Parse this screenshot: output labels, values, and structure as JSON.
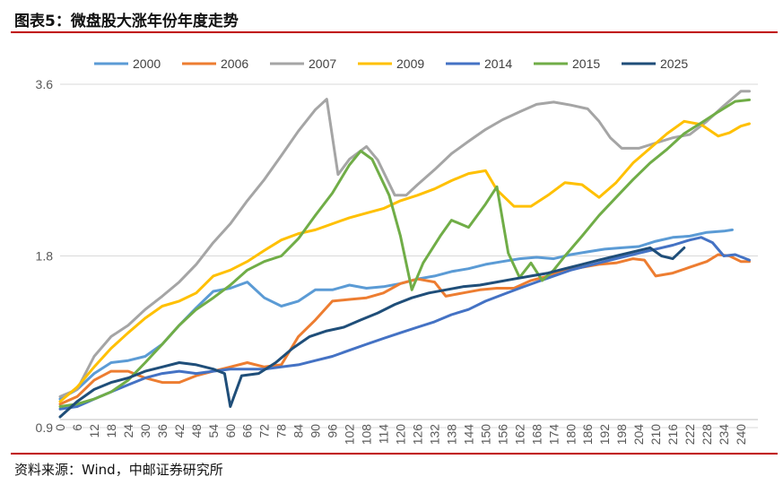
{
  "header": {
    "title": "图表5：微盘股大涨年份年度走势"
  },
  "footer": {
    "source": "资料来源：Wind，中邮证券研究所"
  },
  "chart_data": {
    "type": "line",
    "title": "图表5：微盘股大涨年份年度走势",
    "xlabel": "",
    "ylabel": "",
    "ylim": [
      0.9,
      3.6
    ],
    "yscale": "log",
    "yticks": [
      "0.9",
      "1.8",
      "3.6"
    ],
    "xlim": [
      0,
      246
    ],
    "xticks": [
      0,
      6,
      12,
      18,
      24,
      30,
      36,
      42,
      48,
      54,
      60,
      66,
      72,
      78,
      84,
      90,
      96,
      102,
      108,
      114,
      120,
      126,
      132,
      138,
      144,
      150,
      156,
      162,
      168,
      174,
      180,
      186,
      192,
      198,
      204,
      210,
      216,
      222,
      228,
      234,
      240
    ],
    "legend_position": "top",
    "series": [
      {
        "name": "2000",
        "color": "#5b9bd5",
        "points": [
          [
            0,
            1.01
          ],
          [
            6,
            1.05
          ],
          [
            12,
            1.12
          ],
          [
            18,
            1.17
          ],
          [
            24,
            1.18
          ],
          [
            30,
            1.2
          ],
          [
            36,
            1.26
          ],
          [
            42,
            1.36
          ],
          [
            48,
            1.46
          ],
          [
            54,
            1.56
          ],
          [
            60,
            1.58
          ],
          [
            66,
            1.62
          ],
          [
            72,
            1.52
          ],
          [
            78,
            1.47
          ],
          [
            84,
            1.5
          ],
          [
            90,
            1.57
          ],
          [
            96,
            1.57
          ],
          [
            102,
            1.6
          ],
          [
            108,
            1.58
          ],
          [
            114,
            1.59
          ],
          [
            120,
            1.61
          ],
          [
            126,
            1.64
          ],
          [
            132,
            1.66
          ],
          [
            138,
            1.69
          ],
          [
            144,
            1.71
          ],
          [
            150,
            1.74
          ],
          [
            156,
            1.76
          ],
          [
            162,
            1.78
          ],
          [
            168,
            1.79
          ],
          [
            174,
            1.78
          ],
          [
            180,
            1.81
          ],
          [
            186,
            1.83
          ],
          [
            192,
            1.85
          ],
          [
            198,
            1.86
          ],
          [
            204,
            1.87
          ],
          [
            210,
            1.91
          ],
          [
            216,
            1.94
          ],
          [
            222,
            1.95
          ],
          [
            228,
            1.98
          ],
          [
            234,
            1.99
          ],
          [
            237,
            2.0
          ]
        ]
      },
      {
        "name": "2006",
        "color": "#ed7d31",
        "points": [
          [
            0,
            0.99
          ],
          [
            6,
            1.02
          ],
          [
            12,
            1.09
          ],
          [
            18,
            1.13
          ],
          [
            24,
            1.13
          ],
          [
            30,
            1.1
          ],
          [
            36,
            1.08
          ],
          [
            42,
            1.08
          ],
          [
            48,
            1.11
          ],
          [
            54,
            1.13
          ],
          [
            60,
            1.15
          ],
          [
            66,
            1.17
          ],
          [
            72,
            1.15
          ],
          [
            78,
            1.16
          ],
          [
            84,
            1.3
          ],
          [
            90,
            1.39
          ],
          [
            96,
            1.5
          ],
          [
            102,
            1.51
          ],
          [
            108,
            1.52
          ],
          [
            114,
            1.55
          ],
          [
            120,
            1.61
          ],
          [
            126,
            1.64
          ],
          [
            132,
            1.62
          ],
          [
            136,
            1.53
          ],
          [
            142,
            1.55
          ],
          [
            148,
            1.57
          ],
          [
            154,
            1.58
          ],
          [
            160,
            1.58
          ],
          [
            166,
            1.63
          ],
          [
            172,
            1.66
          ],
          [
            178,
            1.7
          ],
          [
            184,
            1.72
          ],
          [
            190,
            1.74
          ],
          [
            196,
            1.75
          ],
          [
            202,
            1.78
          ],
          [
            206,
            1.77
          ],
          [
            210,
            1.66
          ],
          [
            216,
            1.68
          ],
          [
            222,
            1.72
          ],
          [
            228,
            1.76
          ],
          [
            232,
            1.81
          ],
          [
            236,
            1.8
          ],
          [
            240,
            1.76
          ],
          [
            243,
            1.76
          ]
        ]
      },
      {
        "name": "2007",
        "color": "#a5a5a5",
        "points": [
          [
            0,
            1.02
          ],
          [
            6,
            1.05
          ],
          [
            12,
            1.2
          ],
          [
            18,
            1.3
          ],
          [
            24,
            1.36
          ],
          [
            30,
            1.45
          ],
          [
            36,
            1.53
          ],
          [
            42,
            1.62
          ],
          [
            48,
            1.74
          ],
          [
            54,
            1.9
          ],
          [
            60,
            2.05
          ],
          [
            66,
            2.25
          ],
          [
            72,
            2.45
          ],
          [
            78,
            2.7
          ],
          [
            84,
            2.98
          ],
          [
            90,
            3.25
          ],
          [
            94,
            3.39
          ],
          [
            98,
            2.5
          ],
          [
            102,
            2.66
          ],
          [
            108,
            2.8
          ],
          [
            112,
            2.65
          ],
          [
            118,
            2.3
          ],
          [
            122,
            2.3
          ],
          [
            126,
            2.4
          ],
          [
            132,
            2.55
          ],
          [
            138,
            2.72
          ],
          [
            144,
            2.86
          ],
          [
            150,
            3.0
          ],
          [
            156,
            3.12
          ],
          [
            162,
            3.22
          ],
          [
            168,
            3.32
          ],
          [
            174,
            3.35
          ],
          [
            180,
            3.31
          ],
          [
            186,
            3.26
          ],
          [
            190,
            3.1
          ],
          [
            194,
            2.9
          ],
          [
            198,
            2.78
          ],
          [
            204,
            2.78
          ],
          [
            210,
            2.84
          ],
          [
            216,
            2.9
          ],
          [
            222,
            2.94
          ],
          [
            228,
            3.1
          ],
          [
            234,
            3.3
          ],
          [
            240,
            3.5
          ],
          [
            243,
            3.5
          ]
        ]
      },
      {
        "name": "2009",
        "color": "#ffc000",
        "points": [
          [
            0,
            1.0
          ],
          [
            6,
            1.06
          ],
          [
            12,
            1.15
          ],
          [
            18,
            1.24
          ],
          [
            24,
            1.32
          ],
          [
            30,
            1.4
          ],
          [
            36,
            1.47
          ],
          [
            42,
            1.5
          ],
          [
            48,
            1.55
          ],
          [
            54,
            1.66
          ],
          [
            60,
            1.7
          ],
          [
            66,
            1.76
          ],
          [
            72,
            1.84
          ],
          [
            78,
            1.92
          ],
          [
            84,
            1.97
          ],
          [
            90,
            2.0
          ],
          [
            96,
            2.05
          ],
          [
            102,
            2.1
          ],
          [
            108,
            2.14
          ],
          [
            114,
            2.18
          ],
          [
            120,
            2.25
          ],
          [
            126,
            2.3
          ],
          [
            132,
            2.36
          ],
          [
            138,
            2.44
          ],
          [
            144,
            2.51
          ],
          [
            150,
            2.54
          ],
          [
            154,
            2.35
          ],
          [
            160,
            2.2
          ],
          [
            166,
            2.2
          ],
          [
            172,
            2.3
          ],
          [
            178,
            2.42
          ],
          [
            184,
            2.4
          ],
          [
            190,
            2.28
          ],
          [
            196,
            2.42
          ],
          [
            202,
            2.62
          ],
          [
            208,
            2.78
          ],
          [
            214,
            2.95
          ],
          [
            220,
            3.1
          ],
          [
            226,
            3.06
          ],
          [
            232,
            2.92
          ],
          [
            236,
            2.96
          ],
          [
            240,
            3.04
          ],
          [
            243,
            3.07
          ]
        ]
      },
      {
        "name": "2014",
        "color": "#4472c4",
        "points": [
          [
            0,
            0.97
          ],
          [
            6,
            0.98
          ],
          [
            12,
            1.01
          ],
          [
            18,
            1.04
          ],
          [
            24,
            1.07
          ],
          [
            30,
            1.1
          ],
          [
            36,
            1.12
          ],
          [
            42,
            1.13
          ],
          [
            48,
            1.12
          ],
          [
            54,
            1.13
          ],
          [
            60,
            1.14
          ],
          [
            66,
            1.14
          ],
          [
            72,
            1.14
          ],
          [
            78,
            1.15
          ],
          [
            84,
            1.16
          ],
          [
            90,
            1.18
          ],
          [
            96,
            1.2
          ],
          [
            102,
            1.23
          ],
          [
            108,
            1.26
          ],
          [
            114,
            1.29
          ],
          [
            120,
            1.32
          ],
          [
            126,
            1.35
          ],
          [
            132,
            1.38
          ],
          [
            138,
            1.42
          ],
          [
            144,
            1.45
          ],
          [
            150,
            1.5
          ],
          [
            156,
            1.54
          ],
          [
            162,
            1.58
          ],
          [
            168,
            1.62
          ],
          [
            174,
            1.66
          ],
          [
            180,
            1.7
          ],
          [
            186,
            1.73
          ],
          [
            192,
            1.76
          ],
          [
            198,
            1.79
          ],
          [
            204,
            1.82
          ],
          [
            210,
            1.85
          ],
          [
            216,
            1.88
          ],
          [
            222,
            1.92
          ],
          [
            226,
            1.94
          ],
          [
            230,
            1.9
          ],
          [
            234,
            1.8
          ],
          [
            238,
            1.81
          ],
          [
            243,
            1.77
          ]
        ]
      },
      {
        "name": "2015",
        "color": "#70ad47",
        "points": [
          [
            0,
            0.98
          ],
          [
            6,
            0.99
          ],
          [
            12,
            1.01
          ],
          [
            18,
            1.04
          ],
          [
            24,
            1.09
          ],
          [
            30,
            1.17
          ],
          [
            36,
            1.26
          ],
          [
            42,
            1.36
          ],
          [
            48,
            1.45
          ],
          [
            54,
            1.52
          ],
          [
            60,
            1.6
          ],
          [
            66,
            1.7
          ],
          [
            72,
            1.76
          ],
          [
            78,
            1.8
          ],
          [
            84,
            1.93
          ],
          [
            90,
            2.12
          ],
          [
            96,
            2.32
          ],
          [
            102,
            2.6
          ],
          [
            106,
            2.75
          ],
          [
            110,
            2.66
          ],
          [
            116,
            2.3
          ],
          [
            120,
            1.95
          ],
          [
            124,
            1.57
          ],
          [
            128,
            1.75
          ],
          [
            134,
            1.95
          ],
          [
            138,
            2.08
          ],
          [
            144,
            2.02
          ],
          [
            150,
            2.22
          ],
          [
            154,
            2.38
          ],
          [
            158,
            1.82
          ],
          [
            162,
            1.65
          ],
          [
            166,
            1.75
          ],
          [
            170,
            1.63
          ],
          [
            174,
            1.7
          ],
          [
            178,
            1.8
          ],
          [
            184,
            1.95
          ],
          [
            190,
            2.12
          ],
          [
            196,
            2.28
          ],
          [
            202,
            2.45
          ],
          [
            208,
            2.62
          ],
          [
            214,
            2.77
          ],
          [
            220,
            2.95
          ],
          [
            226,
            3.08
          ],
          [
            232,
            3.22
          ],
          [
            238,
            3.36
          ],
          [
            243,
            3.38
          ]
        ]
      },
      {
        "name": "2025",
        "color": "#1f4e79",
        "points": [
          [
            0,
            0.94
          ],
          [
            6,
            1.0
          ],
          [
            12,
            1.05
          ],
          [
            18,
            1.08
          ],
          [
            24,
            1.1
          ],
          [
            30,
            1.13
          ],
          [
            36,
            1.15
          ],
          [
            42,
            1.17
          ],
          [
            48,
            1.16
          ],
          [
            54,
            1.14
          ],
          [
            58,
            1.12
          ],
          [
            60,
            0.98
          ],
          [
            64,
            1.11
          ],
          [
            70,
            1.12
          ],
          [
            76,
            1.17
          ],
          [
            82,
            1.24
          ],
          [
            88,
            1.3
          ],
          [
            94,
            1.33
          ],
          [
            100,
            1.35
          ],
          [
            106,
            1.39
          ],
          [
            112,
            1.43
          ],
          [
            118,
            1.48
          ],
          [
            124,
            1.52
          ],
          [
            130,
            1.55
          ],
          [
            136,
            1.57
          ],
          [
            142,
            1.59
          ],
          [
            148,
            1.6
          ],
          [
            154,
            1.62
          ],
          [
            160,
            1.64
          ],
          [
            166,
            1.66
          ],
          [
            172,
            1.68
          ],
          [
            178,
            1.71
          ],
          [
            184,
            1.74
          ],
          [
            190,
            1.77
          ],
          [
            196,
            1.8
          ],
          [
            202,
            1.83
          ],
          [
            208,
            1.86
          ],
          [
            212,
            1.8
          ],
          [
            216,
            1.78
          ],
          [
            220,
            1.86
          ]
        ]
      }
    ]
  }
}
